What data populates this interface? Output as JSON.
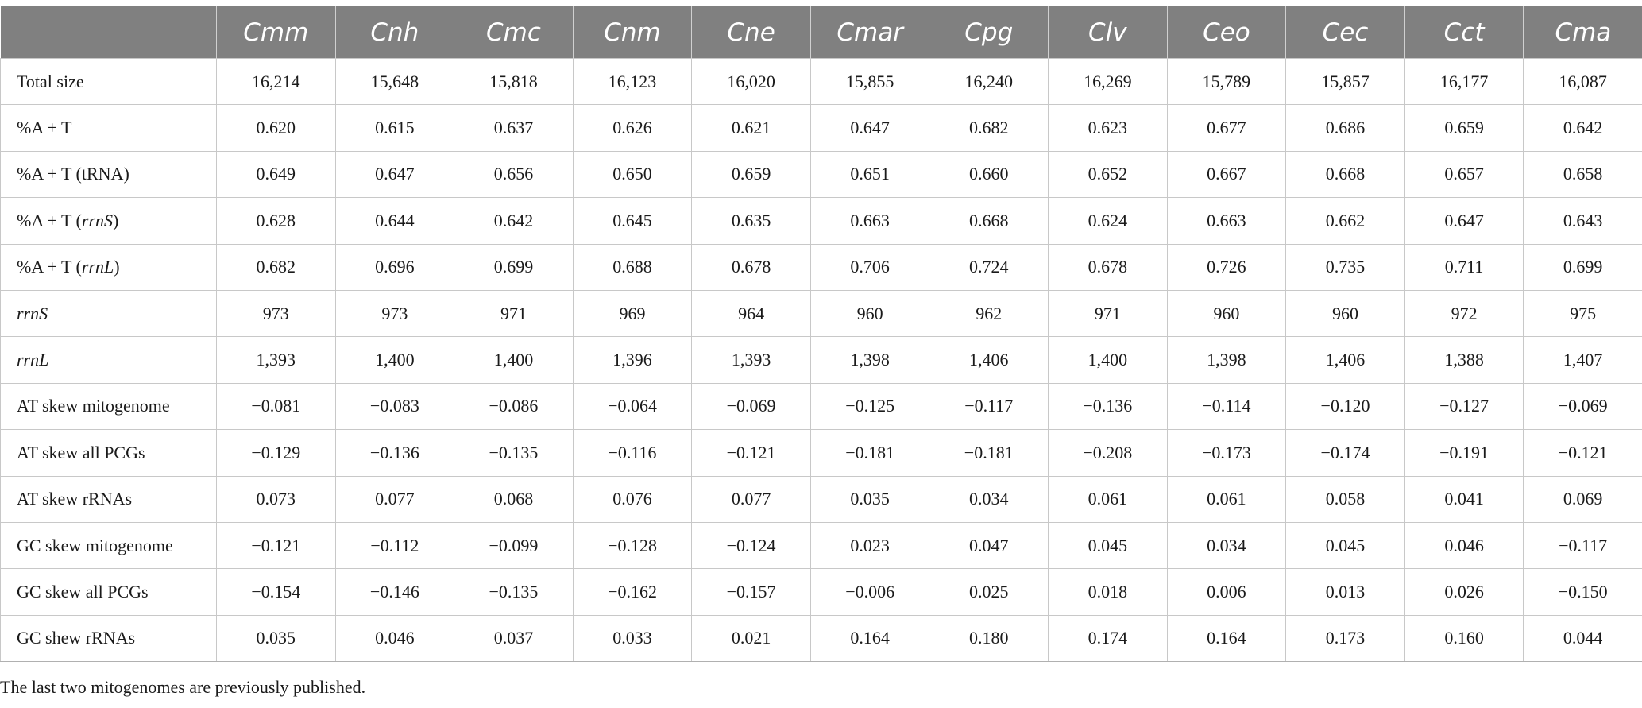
{
  "table": {
    "corner": "",
    "columns": [
      "Cmm",
      "Cnh",
      "Cmc",
      "Cnm",
      "Cne",
      "Cmar",
      "Cpg",
      "Clv",
      "Ceo",
      "Cec",
      "Cct",
      "Cma"
    ],
    "rows": [
      {
        "label_pre": "Total size",
        "label_it": "",
        "label_post": "",
        "values": [
          "16,214",
          "15,648",
          "15,818",
          "16,123",
          "16,020",
          "15,855",
          "16,240",
          "16,269",
          "15,789",
          "15,857",
          "16,177",
          "16,087"
        ]
      },
      {
        "label_pre": "%A + T",
        "label_it": "",
        "label_post": "",
        "values": [
          "0.620",
          "0.615",
          "0.637",
          "0.626",
          "0.621",
          "0.647",
          "0.682",
          "0.623",
          "0.677",
          "0.686",
          "0.659",
          "0.642"
        ]
      },
      {
        "label_pre": "%A + T (tRNA)",
        "label_it": "",
        "label_post": "",
        "values": [
          "0.649",
          "0.647",
          "0.656",
          "0.650",
          "0.659",
          "0.651",
          "0.660",
          "0.652",
          "0.667",
          "0.668",
          "0.657",
          "0.658"
        ]
      },
      {
        "label_pre": "%A + T (",
        "label_it": "rrnS",
        "label_post": ")",
        "values": [
          "0.628",
          "0.644",
          "0.642",
          "0.645",
          "0.635",
          "0.663",
          "0.668",
          "0.624",
          "0.663",
          "0.662",
          "0.647",
          "0.643"
        ]
      },
      {
        "label_pre": "%A + T (",
        "label_it": "rrnL",
        "label_post": ")",
        "values": [
          "0.682",
          "0.696",
          "0.699",
          "0.688",
          "0.678",
          "0.706",
          "0.724",
          "0.678",
          "0.726",
          "0.735",
          "0.711",
          "0.699"
        ]
      },
      {
        "label_pre": "",
        "label_it": "rrnS",
        "label_post": "",
        "values": [
          "973",
          "973",
          "971",
          "969",
          "964",
          "960",
          "962",
          "971",
          "960",
          "960",
          "972",
          "975"
        ]
      },
      {
        "label_pre": "",
        "label_it": "rrnL",
        "label_post": "",
        "values": [
          "1,393",
          "1,400",
          "1,400",
          "1,396",
          "1,393",
          "1,398",
          "1,406",
          "1,400",
          "1,398",
          "1,406",
          "1,388",
          "1,407"
        ]
      },
      {
        "label_pre": "AT skew mitogenome",
        "label_it": "",
        "label_post": "",
        "values": [
          "−0.081",
          "−0.083",
          "−0.086",
          "−0.064",
          "−0.069",
          "−0.125",
          "−0.117",
          "−0.136",
          "−0.114",
          "−0.120",
          "−0.127",
          "−0.069"
        ]
      },
      {
        "label_pre": "AT skew all PCGs",
        "label_it": "",
        "label_post": "",
        "values": [
          "−0.129",
          "−0.136",
          "−0.135",
          "−0.116",
          "−0.121",
          "−0.181",
          "−0.181",
          "−0.208",
          "−0.173",
          "−0.174",
          "−0.191",
          "−0.121"
        ]
      },
      {
        "label_pre": "AT skew rRNAs",
        "label_it": "",
        "label_post": "",
        "values": [
          "0.073",
          "0.077",
          "0.068",
          "0.076",
          "0.077",
          "0.035",
          "0.034",
          "0.061",
          "0.061",
          "0.058",
          "0.041",
          "0.069"
        ]
      },
      {
        "label_pre": "GC skew mitogenome",
        "label_it": "",
        "label_post": "",
        "values": [
          "−0.121",
          "−0.112",
          "−0.099",
          "−0.128",
          "−0.124",
          "0.023",
          "0.047",
          "0.045",
          "0.034",
          "0.045",
          "0.046",
          "−0.117"
        ]
      },
      {
        "label_pre": "GC skew all PCGs",
        "label_it": "",
        "label_post": "",
        "values": [
          "−0.154",
          "−0.146",
          "−0.135",
          "−0.162",
          "−0.157",
          "−0.006",
          "0.025",
          "0.018",
          "0.006",
          "0.013",
          "0.026",
          "−0.150"
        ]
      },
      {
        "label_pre": "GC shew rRNAs",
        "label_it": "",
        "label_post": "",
        "values": [
          "0.035",
          "0.046",
          "0.037",
          "0.033",
          "0.021",
          "0.164",
          "0.180",
          "0.174",
          "0.164",
          "0.173",
          "0.160",
          "0.044"
        ]
      }
    ]
  },
  "footnote": "The last two mitogenomes are previously published.",
  "colors": {
    "header_bg": "#808080",
    "header_text": "#ffffff",
    "grid_line": "#c8c8c8",
    "body_text": "#1a1a1a"
  }
}
